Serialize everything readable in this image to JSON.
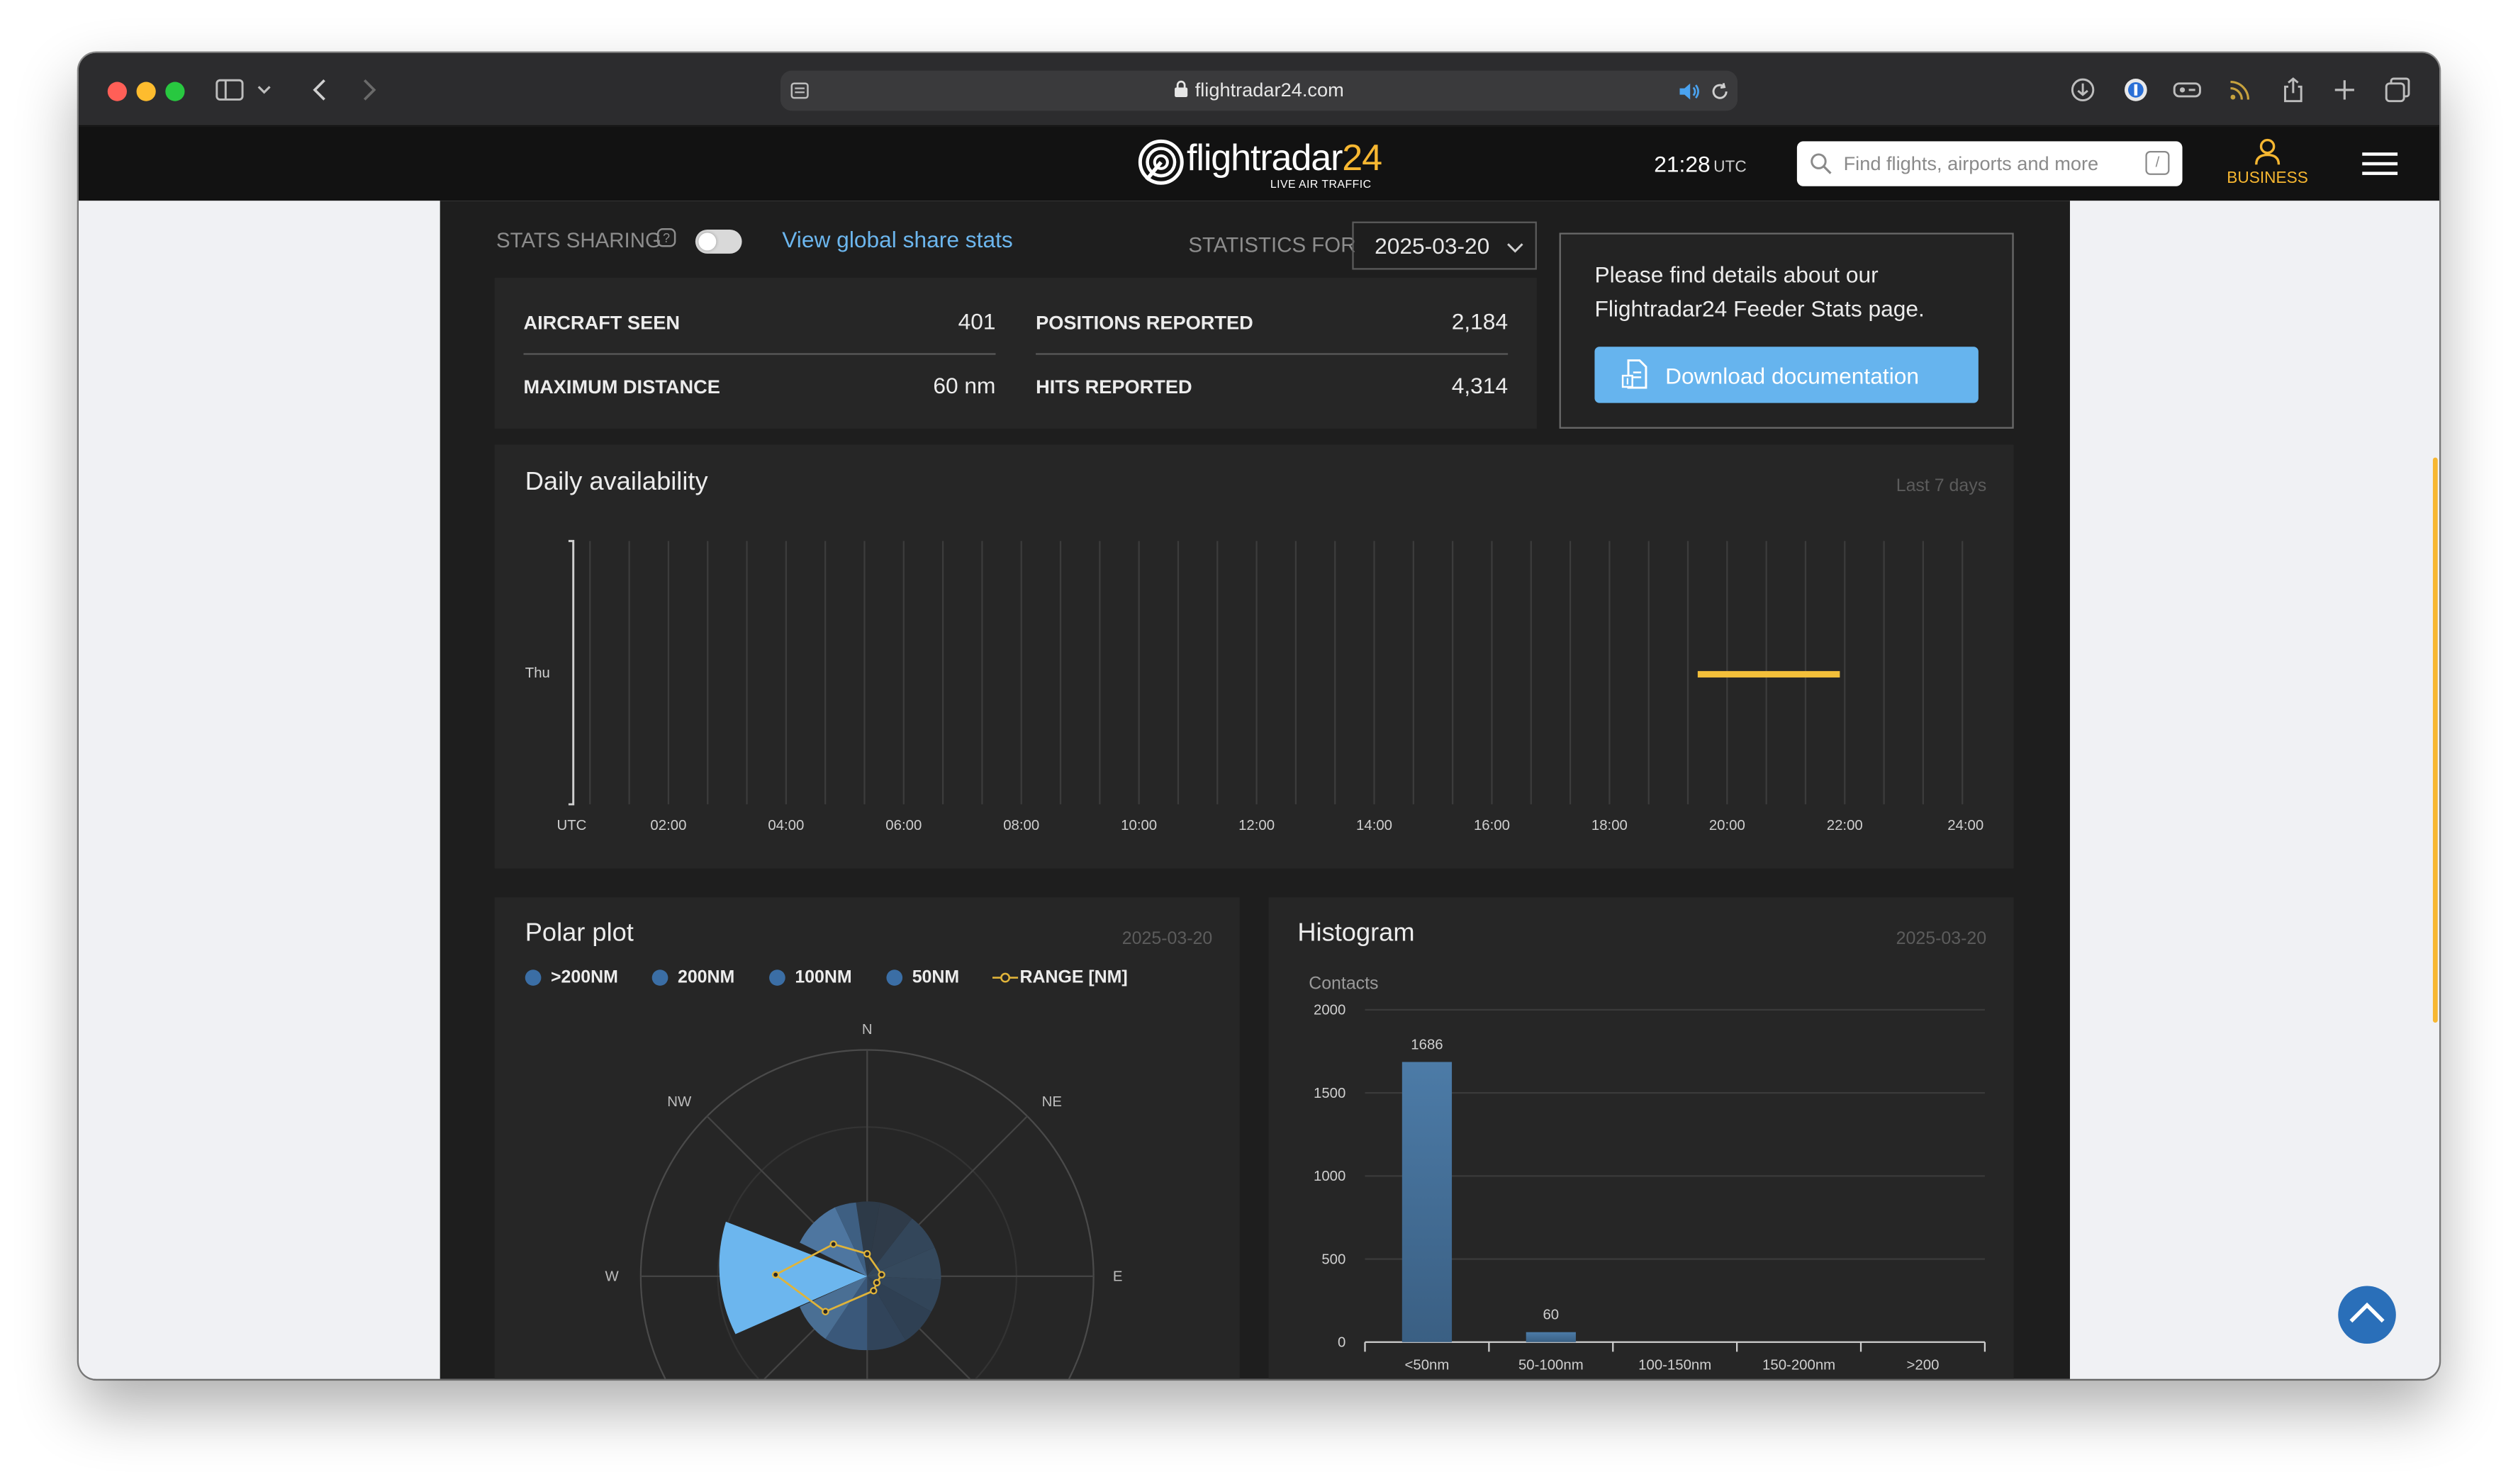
{
  "browser": {
    "url": "flightradar24.com"
  },
  "header": {
    "logo_text": "flightradar",
    "logo_number": "24",
    "logo_subtitle": "LIVE AIR TRAFFIC",
    "time": "21:28",
    "time_zone": "UTC",
    "search_placeholder": "Find flights, airports and more",
    "search_shortcut": "/",
    "business_label": "BUSINESS",
    "accent_color": "#f7b731"
  },
  "stats_bar": {
    "sharing_label": "STATS SHARING",
    "sharing_enabled": false,
    "global_link": "View global share stats",
    "statistics_for_label": "STATISTICS FOR",
    "selected_date": "2025-03-20"
  },
  "stats": {
    "aircraft_seen_label": "AIRCRAFT SEEN",
    "aircraft_seen_value": "401",
    "positions_reported_label": "POSITIONS REPORTED",
    "positions_reported_value": "2,184",
    "maximum_distance_label": "MAXIMUM DISTANCE",
    "maximum_distance_value": "60 nm",
    "hits_reported_label": "HITS REPORTED",
    "hits_reported_value": "4,314"
  },
  "info_box": {
    "text": "Please find details about our Flightradar24 Feeder Stats page.",
    "button_label": "Download documentation"
  },
  "availability": {
    "title": "Daily availability",
    "meta": "Last 7 days",
    "row_label": "Thu",
    "first_tick": "UTC",
    "ticks": [
      "02:00",
      "04:00",
      "06:00",
      "08:00",
      "10:00",
      "12:00",
      "14:00",
      "16:00",
      "18:00",
      "20:00",
      "22:00",
      "24:00"
    ]
  },
  "polar": {
    "title": "Polar plot",
    "date": "2025-03-20",
    "legend": [
      ">200NM",
      "200NM",
      "100NM",
      "50NM",
      "RANGE [NM]"
    ],
    "directions": {
      "n": "N",
      "ne": "NE",
      "e": "E",
      "w": "W",
      "nw": "NW"
    }
  },
  "histogram": {
    "title": "Histogram",
    "date": "2025-03-20",
    "ylabel": "Contacts",
    "y_ticks": [
      "2000",
      "1500",
      "1000",
      "500",
      "0"
    ],
    "bar_labels": [
      "1686",
      "60"
    ],
    "categories": [
      "<50nm",
      "50-100nm",
      "100-150nm",
      "150-200nm",
      ">200"
    ]
  },
  "chart_data": [
    {
      "type": "heatmap",
      "title": "Daily availability",
      "rows": [
        "Thu"
      ],
      "x_ticks": [
        "UTC",
        "02:00",
        "04:00",
        "06:00",
        "08:00",
        "10:00",
        "12:00",
        "14:00",
        "16:00",
        "18:00",
        "20:00",
        "22:00",
        "24:00"
      ],
      "available_intervals_utc": [
        [
          "19:30",
          "21:55"
        ]
      ],
      "range": [
        "00:00",
        "24:00"
      ],
      "color": "#f3bf3a"
    },
    {
      "type": "bar",
      "title": "Histogram",
      "categories": [
        "<50nm",
        "50-100nm",
        "100-150nm",
        "150-200nm",
        ">200"
      ],
      "values": [
        1686,
        60,
        0,
        0,
        0
      ],
      "ylabel": "Contacts",
      "ylim": [
        0,
        2000
      ]
    },
    {
      "type": "polar",
      "title": "Polar plot",
      "series": [
        {
          "name": ">200NM",
          "values": []
        },
        {
          "name": "200NM",
          "values": []
        },
        {
          "name": "100NM",
          "values": []
        },
        {
          "name": "50NM",
          "values": []
        },
        {
          "name": "RANGE [NM]",
          "values": []
        }
      ],
      "directions": [
        "N",
        "NE",
        "E",
        "W",
        "NW"
      ],
      "sector_fill_color": "#6cb6ee",
      "range_color": "#e0b43a"
    }
  ]
}
